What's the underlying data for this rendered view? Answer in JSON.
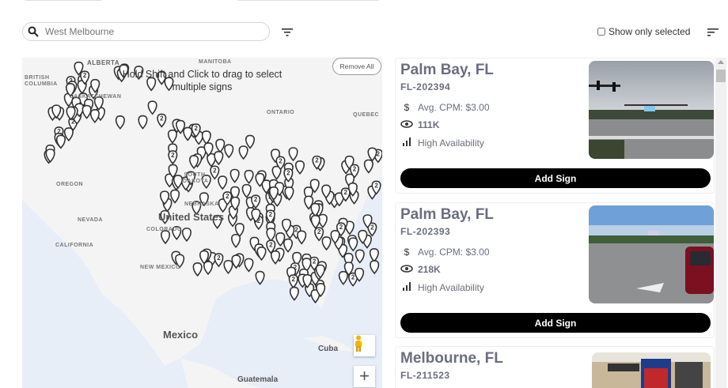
{
  "search": {
    "placeholder": "West Melbourne"
  },
  "show_only_selected": {
    "label": "Show only selected",
    "checked": false
  },
  "map": {
    "hint": "Hold Shift and Click to drag to select multiple signs",
    "remove_all": "Remove All",
    "cluster_label": "2",
    "labels": {
      "alberta": "ALBERTA",
      "manitoba": "MANITOBA",
      "british_columbia": "BRITISH COLUMBIA",
      "saskatchewan": "SASKATCHEWAN",
      "ontario": "ONTARIO",
      "quebec": "QUEBEC",
      "south_dakota": "SOUTH DAKOTA",
      "nebraska": "NEBRASKA",
      "nevada": "NEVADA",
      "california": "CALIFORNIA",
      "oregon": "OREGON",
      "colorado": "COLORADO",
      "new_mexico": "NEW MEXICO",
      "united_states": "United States",
      "mexico": "Mexico",
      "cuba": "Cuba",
      "guatemala": "Guatemala"
    }
  },
  "cards": [
    {
      "city": "Palm Bay, FL",
      "code": "FL-202394",
      "cpm": "Avg. CPM: $3.00",
      "views": "111K",
      "availability": "High Availability",
      "button": "Add Sign"
    },
    {
      "city": "Palm Bay, FL",
      "code": "FL-202393",
      "cpm": "Avg. CPM: $3.00",
      "views": "218K",
      "availability": "High Availability",
      "button": "Add Sign"
    },
    {
      "city": "Melbourne, FL",
      "code": "FL-211523"
    }
  ],
  "colors": {
    "button_bg": "#000000",
    "title_text": "#6b6e80",
    "map_water": "#e8eef8",
    "map_land": "#f4f4f4"
  }
}
